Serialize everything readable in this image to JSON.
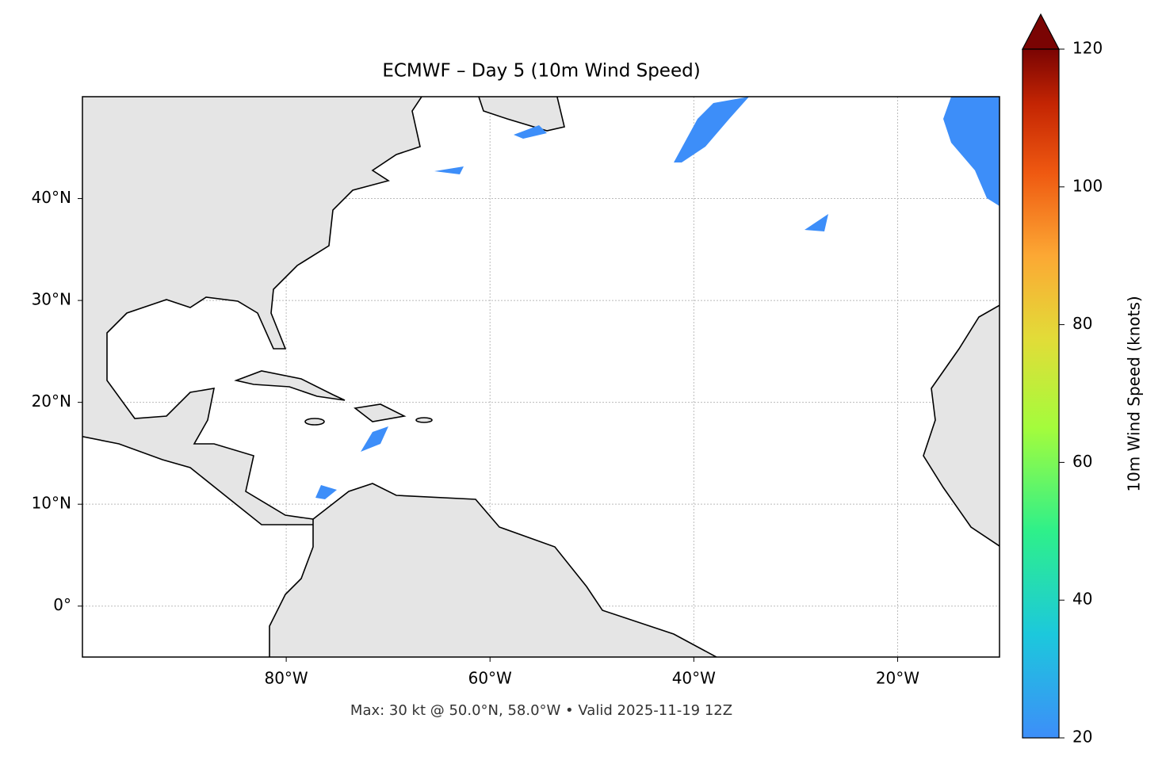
{
  "title": "ECMWF – Day 5 (10m Wind Speed)",
  "map": {
    "xlim": [
      -100,
      -10
    ],
    "ylim": [
      -5,
      50
    ],
    "xticks": [
      {
        "value": -80,
        "label": "80°W"
      },
      {
        "value": -60,
        "label": "60°W"
      },
      {
        "value": -40,
        "label": "40°W"
      },
      {
        "value": -20,
        "label": "20°W"
      }
    ],
    "yticks": [
      {
        "value": 0,
        "label": "0°"
      },
      {
        "value": 10,
        "label": "10°N"
      },
      {
        "value": 20,
        "label": "20°N"
      },
      {
        "value": 30,
        "label": "30°N"
      },
      {
        "value": 40,
        "label": "40°N"
      }
    ],
    "grid": true
  },
  "colorbar": {
    "label": "10m Wind Speed (knots)",
    "lim": [
      20,
      120
    ],
    "ticks": [
      20,
      40,
      60,
      80,
      100,
      120
    ]
  },
  "footer": "Max: 30 kt @ 50.0°N, 58.0°W • Valid 2025-11-19 12Z"
}
